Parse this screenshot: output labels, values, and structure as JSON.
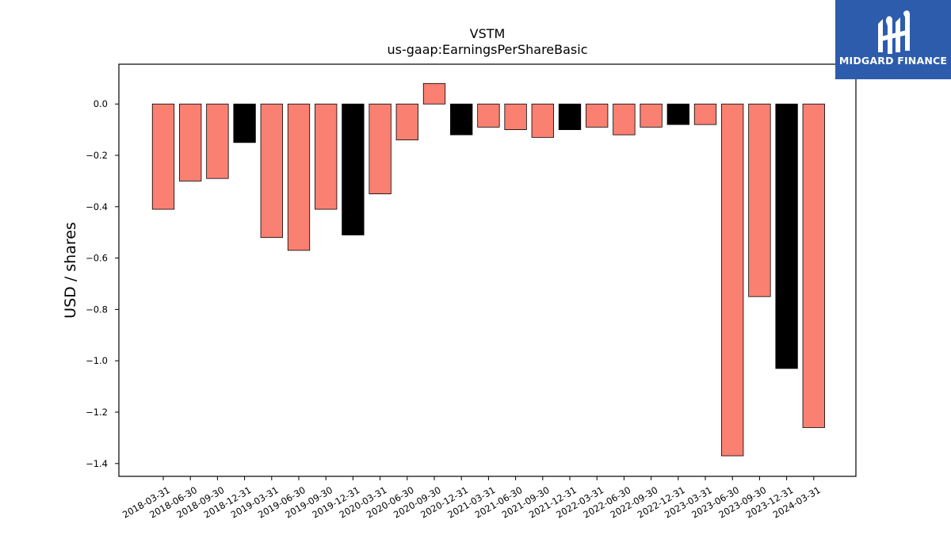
{
  "brand": {
    "name": "MIDGARD FINANCE",
    "color": "#2d5cad"
  },
  "chart_data": {
    "type": "bar",
    "title": "VSTM",
    "subtitle": "us-gaap:EarningsPerShareBasic",
    "xlabel": "",
    "ylabel": "USD / shares",
    "ylim": [
      -1.45,
      0.155
    ],
    "yticks": [
      0.0,
      -0.2,
      -0.4,
      -0.6,
      -0.8,
      -1.0,
      -1.2,
      -1.4
    ],
    "grid": false,
    "legend": "none",
    "colors": {
      "quarter": "#fa8072",
      "year_end": "#000000"
    },
    "categories": [
      "2018-03-31",
      "2018-06-30",
      "2018-09-30",
      "2018-12-31",
      "2019-03-31",
      "2019-06-30",
      "2019-09-30",
      "2019-12-31",
      "2020-03-31",
      "2020-06-30",
      "2020-09-30",
      "2020-12-31",
      "2021-03-31",
      "2021-06-30",
      "2021-09-30",
      "2021-12-31",
      "2022-03-31",
      "2022-06-30",
      "2022-09-30",
      "2022-12-31",
      "2023-03-31",
      "2023-06-30",
      "2023-09-30",
      "2023-12-31",
      "2024-03-31"
    ],
    "values": [
      -0.41,
      -0.3,
      -0.29,
      -0.15,
      -0.52,
      -0.57,
      -0.41,
      -0.51,
      -0.35,
      -0.14,
      0.08,
      -0.12,
      -0.09,
      -0.1,
      -0.13,
      -0.1,
      -0.09,
      -0.12,
      -0.09,
      -0.08,
      -0.08,
      -1.37,
      -0.75,
      -1.03,
      -1.26
    ],
    "bar_colors": [
      "#fa8072",
      "#fa8072",
      "#fa8072",
      "#000000",
      "#fa8072",
      "#fa8072",
      "#fa8072",
      "#000000",
      "#fa8072",
      "#fa8072",
      "#fa8072",
      "#000000",
      "#fa8072",
      "#fa8072",
      "#fa8072",
      "#000000",
      "#fa8072",
      "#fa8072",
      "#fa8072",
      "#000000",
      "#fa8072",
      "#fa8072",
      "#fa8072",
      "#000000",
      "#fa8072"
    ]
  }
}
